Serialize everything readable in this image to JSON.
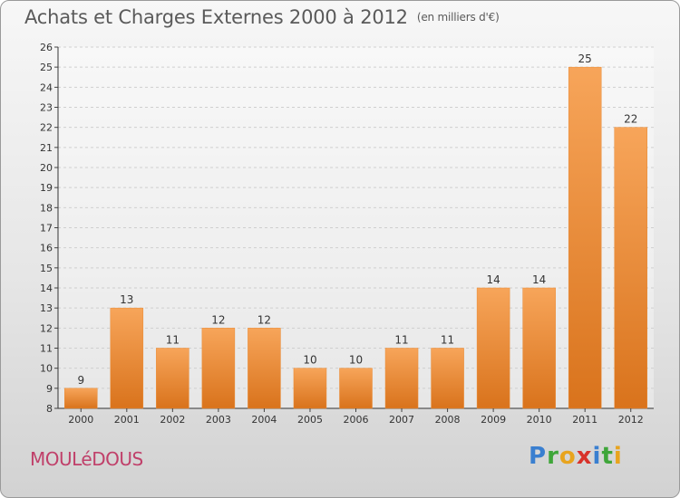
{
  "title": "Achats et Charges Externes 2000 à 2012",
  "unit": "(en milliers d'€)",
  "commune": "MOULéDOUS",
  "logo": {
    "letters": [
      "P",
      "r",
      "o",
      "x",
      "i",
      "t",
      "i"
    ],
    "colors": [
      "#3a7fd0",
      "#3fa63a",
      "#e8a41e",
      "#d8322a",
      "#3a7fd0",
      "#3fa63a",
      "#e8a41e"
    ]
  },
  "colors": {
    "bar_light": "#f7a55a",
    "bar_dark": "#d9731c",
    "title": "#5a5a5a",
    "commune": "#c0406a"
  },
  "chart_data": {
    "type": "bar",
    "categories": [
      "2000",
      "2001",
      "2002",
      "2003",
      "2004",
      "2005",
      "2006",
      "2007",
      "2008",
      "2009",
      "2010",
      "2011",
      "2012"
    ],
    "values": [
      9,
      13,
      11,
      12,
      12,
      10,
      10,
      11,
      11,
      14,
      14,
      25,
      22
    ],
    "ylim": [
      8,
      26
    ],
    "yticks": [
      8,
      9,
      10,
      11,
      12,
      13,
      14,
      15,
      16,
      17,
      18,
      19,
      20,
      21,
      22,
      23,
      24,
      25,
      26
    ],
    "grid": "horizontal dashed",
    "legend": "none"
  }
}
